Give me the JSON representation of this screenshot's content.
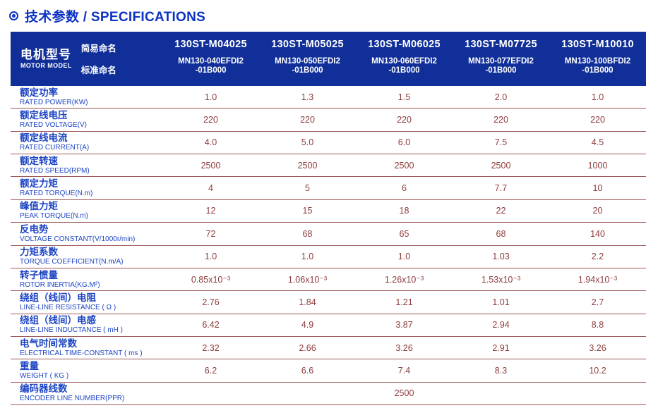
{
  "page": {
    "title": "技术参数 / SPECIFICATIONS"
  },
  "colors": {
    "title_blue": "#0c33c2",
    "header_background": "#112f98",
    "header_text": "#ffffff",
    "label_blue": "#1c44c4",
    "value_maroon": "#8e3c3c",
    "row_line": "#9b5a5a",
    "page_background": "#ffffff"
  },
  "table": {
    "header": {
      "motor_model_zh": "电机型号",
      "motor_model_en": "MOTOR MODEL",
      "simple_name_label": "简易命名",
      "standard_name_label": "标准命名",
      "models": [
        {
          "simple": "130ST-M04025",
          "standard": "MN130-040EFDI2\n-01B000"
        },
        {
          "simple": "130ST-M05025",
          "standard": "MN130-050EFDI2\n-01B000"
        },
        {
          "simple": "130ST-M06025",
          "standard": "MN130-060EFDI2\n-01B000"
        },
        {
          "simple": "130ST-M07725",
          "standard": "MN130-077EFDI2\n-01B000"
        },
        {
          "simple": "130ST-M10010",
          "standard": "MN130-100BFDI2\n-01B000"
        }
      ]
    },
    "rows": [
      {
        "zh": "额定功率",
        "en": "RATED POWER(KW)",
        "values": [
          "1.0",
          "1.3",
          "1.5",
          "2.0",
          "1.0"
        ]
      },
      {
        "zh": "额定线电压",
        "en": "RATED VOLTAGE(V)",
        "values": [
          "220",
          "220",
          "220",
          "220",
          "220"
        ]
      },
      {
        "zh": "额定线电流",
        "en": "RATED CURRENT(A)",
        "values": [
          "4.0",
          "5.0",
          "6.0",
          "7.5",
          "4.5"
        ]
      },
      {
        "zh": "额定转速",
        "en": "RATED SPEED(RPM)",
        "values": [
          "2500",
          "2500",
          "2500",
          "2500",
          "1000"
        ]
      },
      {
        "zh": "额定力矩",
        "en": "RATED TORQUE(N.m)",
        "values": [
          "4",
          "5",
          "6",
          "7.7",
          "10"
        ]
      },
      {
        "zh": "峰值力矩",
        "en": "PEAK TORQUE(N.m)",
        "values": [
          "12",
          "15",
          "18",
          "22",
          "20"
        ]
      },
      {
        "zh": "反电势",
        "en": "VOLTAGE CONSTANT(V/1000r/min)",
        "values": [
          "72",
          "68",
          "65",
          "68",
          "140"
        ]
      },
      {
        "zh": "力矩系数",
        "en": "TORQUE COEFFICIENT(N.m/A)",
        "values": [
          "1.0",
          "1.0",
          "1.0",
          "1.03",
          "2.2"
        ]
      },
      {
        "zh": "转子惯量",
        "en": "ROTOR INERTIA(KG.M²)",
        "values": [
          "0.85x10⁻³",
          "1.06x10⁻³",
          "1.26x10⁻³",
          "1.53x10⁻³",
          "1.94x10⁻³"
        ]
      },
      {
        "zh": "绕组（线间）电阻",
        "en": "LINE-LINE RESISTANCE ( Ω )",
        "values": [
          "2.76",
          "1.84",
          "1.21",
          "1.01",
          "2.7"
        ]
      },
      {
        "zh": "绕组（线间）电感",
        "en": "LINE-LINE INDUCTANCE ( mH )",
        "values": [
          "6.42",
          "4.9",
          "3.87",
          "2.94",
          "8.8"
        ]
      },
      {
        "zh": "电气时间常数",
        "en": "ELECTRICAL TIME-CONSTANT ( ms )",
        "values": [
          "2.32",
          "2.66",
          "3.26",
          "2.91",
          "3.26"
        ]
      },
      {
        "zh": "重量",
        "en": "WEIGHT ( KG )",
        "values": [
          "6.2",
          "6.6",
          "7.4",
          "8.3",
          "10.2"
        ]
      },
      {
        "zh": "编码器线数",
        "en": "ENCODER LINE NUMBER(PPR)",
        "spanning_value": "2500"
      }
    ]
  }
}
